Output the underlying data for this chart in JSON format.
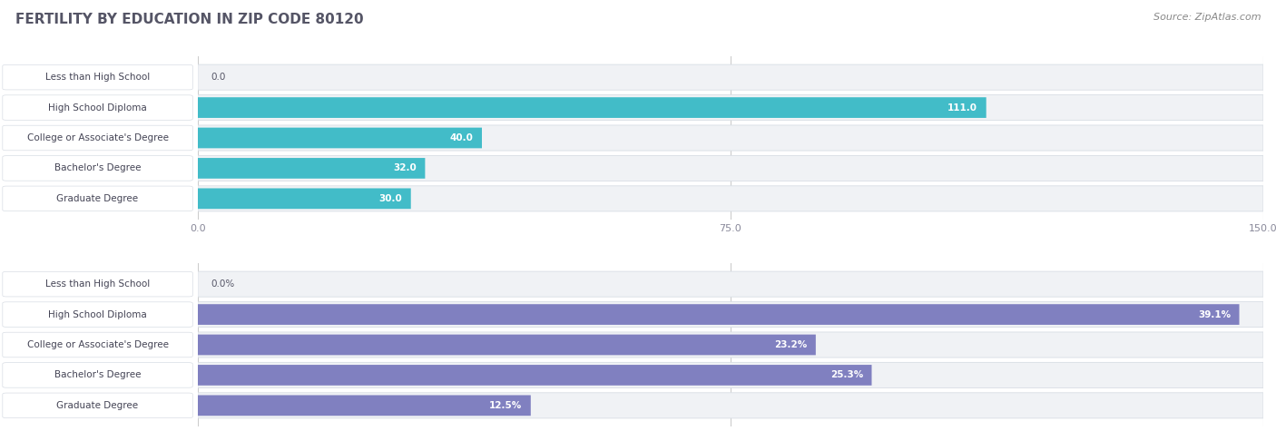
{
  "title": "FERTILITY BY EDUCATION IN ZIP CODE 80120",
  "source": "Source: ZipAtlas.com",
  "top_chart": {
    "categories": [
      "Less than High School",
      "High School Diploma",
      "College or Associate's Degree",
      "Bachelor's Degree",
      "Graduate Degree"
    ],
    "values": [
      0.0,
      111.0,
      40.0,
      32.0,
      30.0
    ],
    "xlim": [
      0,
      150
    ],
    "xticks": [
      0.0,
      75.0,
      150.0
    ],
    "bar_color": "#42bcc8",
    "threshold": 22.0
  },
  "bottom_chart": {
    "categories": [
      "Less than High School",
      "High School Diploma",
      "College or Associate's Degree",
      "Bachelor's Degree",
      "Graduate Degree"
    ],
    "values": [
      0.0,
      39.1,
      23.2,
      25.3,
      12.5
    ],
    "xlim": [
      0,
      40
    ],
    "xticks": [
      0.0,
      20.0,
      40.0
    ],
    "bar_color": "#8080c0",
    "threshold": 6.0
  },
  "title_color": "#555566",
  "title_fontsize": 11,
  "source_fontsize": 8,
  "source_color": "#888888",
  "label_fontsize": 7.5,
  "category_fontsize": 7.5,
  "figure_bg": "#ffffff",
  "row_bg_color": "#f0f2f5",
  "row_border_color": "#d8dde4",
  "cat_label_bg": "#ffffff",
  "cat_label_color": "#444455",
  "tick_color": "#888899",
  "grid_color": "#cccccc"
}
